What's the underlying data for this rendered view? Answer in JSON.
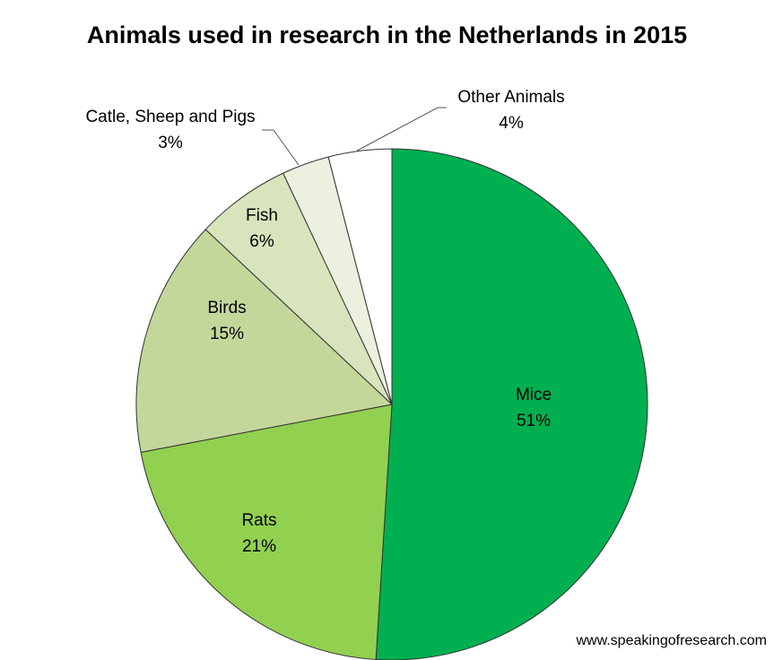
{
  "chart_data": {
    "type": "pie",
    "title": "Animals used in research in the Netherlands in 2015",
    "start": "top, clockwise",
    "slices": [
      {
        "label": "Mice",
        "value": 51,
        "text": "51%",
        "color": "#00b050"
      },
      {
        "label": "Rats",
        "value": 21,
        "text": "21%",
        "color": "#92d050"
      },
      {
        "label": "Birds",
        "value": 15,
        "text": "15%",
        "color": "#c4d79b"
      },
      {
        "label": "Fish",
        "value": 6,
        "text": "6%",
        "color": "#d8e4bc"
      },
      {
        "label": "Catle, Sheep and Pigs",
        "value": 3,
        "text": "3%",
        "color": "#ebf1de"
      },
      {
        "label": "Other Animals",
        "value": 4,
        "text": "4%",
        "color": "#ffffff"
      }
    ]
  },
  "source": "www.speakingofresearch.com"
}
